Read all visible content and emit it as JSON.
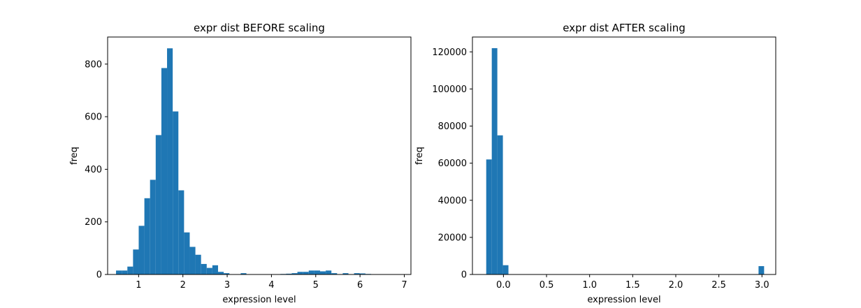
{
  "chart_data": [
    {
      "type": "bar",
      "title": "expr dist BEFORE scaling",
      "xlabel": "expression level",
      "ylabel": "freq",
      "xlim": [
        0.3,
        7.15
      ],
      "ylim": [
        0,
        903
      ],
      "xticks": [
        1,
        2,
        3,
        4,
        5,
        6,
        7
      ],
      "yticks": [
        0,
        200,
        400,
        600,
        800
      ],
      "bin_edges_start": 0.49,
      "bin_width": 0.128,
      "values": [
        15,
        15,
        30,
        95,
        185,
        290,
        360,
        530,
        785,
        860,
        620,
        320,
        160,
        105,
        75,
        40,
        25,
        35,
        10,
        5,
        0,
        0,
        5,
        0,
        0,
        0,
        0,
        0,
        0,
        2,
        3,
        5,
        10,
        10,
        15,
        15,
        12,
        15,
        5,
        0,
        5,
        0,
        5,
        4,
        2,
        0,
        0,
        0,
        0,
        0
      ],
      "color": "#1f77b4",
      "grid": false,
      "legend": "none"
    },
    {
      "type": "bar",
      "title": "expr dist AFTER scaling",
      "xlabel": "expression level",
      "ylabel": "freq",
      "xlim": [
        -0.36,
        3.16
      ],
      "ylim": [
        0,
        128000
      ],
      "xticks": [
        "0.0",
        "0.5",
        "1.0",
        "1.5",
        "2.0",
        "2.5",
        "3.0"
      ],
      "yticks": [
        0,
        20000,
        40000,
        60000,
        80000,
        100000,
        120000
      ],
      "bin_edges_start": -0.2,
      "bin_width": 0.0645,
      "values": [
        62000,
        122000,
        75000,
        5000,
        0,
        0,
        0,
        0,
        0,
        0,
        0,
        0,
        0,
        0,
        0,
        0,
        0,
        0,
        0,
        0,
        0,
        0,
        0,
        0,
        0,
        0,
        0,
        0,
        0,
        0,
        0,
        0,
        0,
        0,
        0,
        0,
        0,
        0,
        0,
        0,
        0,
        0,
        0,
        0,
        0,
        0,
        0,
        0,
        0,
        4500
      ],
      "color": "#1f77b4",
      "grid": false,
      "legend": "none"
    }
  ]
}
